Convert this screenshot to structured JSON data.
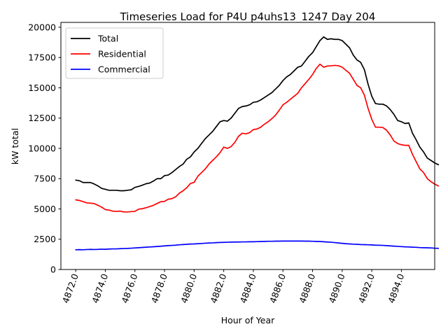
{
  "chart_data": {
    "type": "line",
    "title": "Timeseries Load for P4U p4uhs13_1247  Day 204",
    "xlabel": "Hour of Year",
    "ylabel": "kW total",
    "xlim": [
      4871.0,
      4896.25
    ],
    "ylim": [
      0,
      20400
    ],
    "xticks": [
      4872,
      4874,
      4876,
      4878,
      4880,
      4882,
      4884,
      4886,
      4888,
      4890,
      4892,
      4894
    ],
    "xtick_labels": [
      "4872.0",
      "4874.0",
      "4876.0",
      "4878.0",
      "4880.0",
      "4882.0",
      "4884.0",
      "4886.0",
      "4888.0",
      "4890.0",
      "4892.0",
      "4894.0"
    ],
    "yticks": [
      0,
      2500,
      5000,
      7500,
      10000,
      12500,
      15000,
      17500,
      20000
    ],
    "ytick_labels": [
      "0",
      "2500",
      "5000",
      "7500",
      "10000",
      "12500",
      "15000",
      "17500",
      "20000"
    ],
    "legend_position": "top-left",
    "x_start": 4872.0,
    "x_step": 0.25,
    "series": [
      {
        "name": "Total",
        "color": "#000000",
        "values": [
          7380,
          7330,
          7180,
          7180,
          7180,
          7060,
          6900,
          6700,
          6620,
          6540,
          6540,
          6540,
          6500,
          6500,
          6540,
          6580,
          6780,
          6860,
          6960,
          7080,
          7140,
          7300,
          7500,
          7500,
          7750,
          7800,
          8000,
          8250,
          8500,
          8700,
          9100,
          9300,
          9700,
          10000,
          10400,
          10800,
          11100,
          11400,
          11800,
          12200,
          12300,
          12250,
          12500,
          12900,
          13300,
          13450,
          13500,
          13600,
          13800,
          13850,
          14000,
          14200,
          14400,
          14600,
          14900,
          15200,
          15600,
          15900,
          16100,
          16400,
          16700,
          16800,
          17200,
          17600,
          17900,
          18400,
          18900,
          19200,
          19000,
          19050,
          19000,
          19000,
          18900,
          18600,
          18300,
          17700,
          17300,
          17100,
          16500,
          15300,
          14300,
          13700,
          13650,
          13650,
          13500,
          13200,
          12800,
          12300,
          12200,
          12050,
          12100,
          11250,
          10700,
          10100,
          9700,
          9200,
          9000,
          8800,
          8650
        ]
      },
      {
        "name": "Residential",
        "color": "#ff0000",
        "values": [
          5750,
          5700,
          5600,
          5500,
          5480,
          5440,
          5300,
          5150,
          4950,
          4900,
          4820,
          4800,
          4820,
          4750,
          4750,
          4780,
          4800,
          4980,
          5020,
          5100,
          5200,
          5300,
          5450,
          5600,
          5620,
          5800,
          5850,
          6000,
          6300,
          6500,
          6750,
          7100,
          7200,
          7700,
          8000,
          8300,
          8700,
          9000,
          9300,
          9650,
          10100,
          10000,
          10150,
          10500,
          11000,
          11250,
          11200,
          11300,
          11550,
          11600,
          11750,
          12000,
          12200,
          12450,
          12750,
          13150,
          13600,
          13800,
          14050,
          14300,
          14550,
          15000,
          15350,
          15700,
          16100,
          16600,
          16950,
          16700,
          16800,
          16820,
          16850,
          16820,
          16700,
          16450,
          16200,
          15700,
          15200,
          15000,
          14400,
          13300,
          12400,
          11750,
          11750,
          11720,
          11500,
          11100,
          10600,
          10400,
          10300,
          10250,
          10250,
          9500,
          8900,
          8300,
          8000,
          7500,
          7250,
          7050,
          6900
        ]
      },
      {
        "name": "Commercial",
        "color": "#0000ff",
        "values": [
          1630,
          1640,
          1630,
          1650,
          1660,
          1650,
          1660,
          1680,
          1670,
          1690,
          1700,
          1700,
          1720,
          1730,
          1740,
          1760,
          1780,
          1800,
          1820,
          1840,
          1860,
          1880,
          1900,
          1920,
          1950,
          1970,
          1990,
          2010,
          2040,
          2060,
          2080,
          2100,
          2110,
          2130,
          2150,
          2170,
          2190,
          2200,
          2220,
          2230,
          2240,
          2250,
          2260,
          2270,
          2270,
          2280,
          2280,
          2290,
          2290,
          2300,
          2310,
          2320,
          2330,
          2330,
          2340,
          2340,
          2350,
          2350,
          2350,
          2350,
          2350,
          2350,
          2340,
          2340,
          2330,
          2320,
          2310,
          2290,
          2270,
          2250,
          2220,
          2190,
          2160,
          2130,
          2110,
          2090,
          2080,
          2060,
          2050,
          2040,
          2030,
          2010,
          2000,
          1990,
          1970,
          1950,
          1930,
          1910,
          1890,
          1870,
          1860,
          1840,
          1830,
          1810,
          1800,
          1790,
          1780,
          1760,
          1750
        ]
      }
    ]
  }
}
